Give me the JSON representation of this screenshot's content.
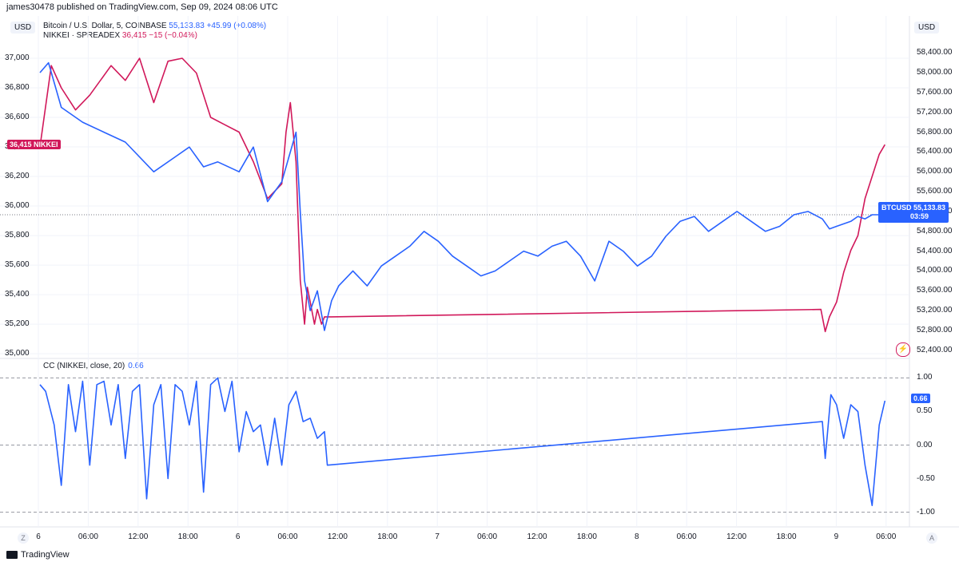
{
  "header": {
    "publisher": "james30478 published on TradingView.com, Sep 09, 2024 08:06 UTC",
    "currency_left": "USD",
    "currency_right": "USD"
  },
  "legend": {
    "btc": {
      "name": "Bitcoin / U.S. Dollar, 5, COINBASE",
      "value": "55,133.83",
      "change": "+45.99 (+0.08%)"
    },
    "nikkei": {
      "name": "NIKKEI · SPREADEX",
      "value": "36,415",
      "change": "−15 (−0.04%)"
    }
  },
  "badges": {
    "nikkei_value": "36,415",
    "nikkei_label": "NIKKEI",
    "btc_label": "BTCUSD",
    "btc_value": "55,133.83",
    "btc_countdown": "03:59",
    "cc_value": "0.66"
  },
  "cc_legend": {
    "label": "CC (NIKKEI, close, 20)",
    "value": "0.66"
  },
  "footer": {
    "brand": "TradingView",
    "z_button": "Z",
    "a_button": "A"
  },
  "colors": {
    "btc": "#2962ff",
    "nikkei": "#d1185a",
    "grid": "#f0f3fa",
    "dashed": "#9598a1"
  },
  "chart_data": [
    {
      "type": "line",
      "title": "Bitcoin / U.S. Dollar, 5, COINBASE vs NIKKEI · SPREADEX",
      "x_ticks": [
        "6",
        "06:00",
        "12:00",
        "18:00",
        "6",
        "06:00",
        "12:00",
        "18:00",
        "7",
        "06:00",
        "12:00",
        "18:00",
        "8",
        "06:00",
        "12:00",
        "18:00",
        "9",
        "06:00"
      ],
      "y_left_ticks": [
        "37,000",
        "36,800",
        "36,600",
        "36,400",
        "36,200",
        "36,000",
        "35,800",
        "35,600",
        "35,400",
        "35,200",
        "35,000"
      ],
      "y_right_ticks": [
        "58,400.00",
        "58,000.00",
        "57,600.00",
        "57,200.00",
        "56,800.00",
        "56,400.00",
        "56,000.00",
        "55,600.00",
        "55,200.00",
        "54,800.00",
        "54,400.00",
        "54,000.00",
        "53,600.00",
        "53,200.00",
        "52,800.00",
        "52,400.00"
      ],
      "ylim_left": [
        34990,
        37070
      ],
      "ylim_right": [
        52300,
        58500
      ],
      "series": [
        {
          "name": "NIKKEI · SPREADEX",
          "axis": "left",
          "x": [
            0,
            0.8,
            1.5,
            2.5,
            3.5,
            5,
            6,
            7,
            8,
            9,
            10,
            11,
            12,
            13,
            14,
            15,
            16,
            17,
            17.3,
            17.6,
            18,
            18.3,
            18.6,
            18.8,
            19,
            19.3,
            19.5,
            19.8,
            20,
            20.5,
            54.9,
            55.2,
            55.5,
            56,
            56.5,
            57,
            57.5,
            58,
            58.5,
            59,
            59.4
          ],
          "values": [
            36400,
            36950,
            36800,
            36650,
            36750,
            36950,
            36850,
            37000,
            36700,
            36980,
            37000,
            36900,
            36600,
            36550,
            36500,
            36300,
            36050,
            36150,
            36500,
            36700,
            36300,
            35500,
            35200,
            35450,
            35350,
            35200,
            35300,
            35200,
            35250,
            35250,
            35300,
            35150,
            35250,
            35350,
            35550,
            35700,
            35800,
            36050,
            36200,
            36350,
            36415
          ]
        },
        {
          "name": "Bitcoin / U.S. Dollar",
          "axis": "right",
          "x": [
            0,
            0.6,
            1.5,
            3,
            4.5,
            6,
            8,
            9.5,
            10.5,
            11.5,
            12.5,
            14,
            15,
            16,
            17,
            18,
            18.3,
            18.6,
            19,
            19.5,
            20,
            20.5,
            21,
            22,
            23,
            24,
            25,
            26,
            27,
            28,
            29,
            30,
            31,
            32,
            33,
            34,
            35,
            36,
            37,
            38,
            39,
            40,
            41,
            42,
            43,
            44,
            45,
            46,
            47,
            48,
            49,
            50,
            51,
            52,
            53,
            54,
            55,
            55.5,
            56,
            56.5,
            57,
            57.5,
            58,
            58.5,
            59,
            59.4
          ],
          "values": [
            58000,
            58200,
            57300,
            57000,
            56800,
            56600,
            56000,
            56300,
            56500,
            56100,
            56200,
            56000,
            56500,
            55400,
            55800,
            56800,
            55200,
            53800,
            53200,
            53600,
            52800,
            53400,
            53700,
            54000,
            53700,
            54100,
            54300,
            54500,
            54800,
            54600,
            54300,
            54100,
            53900,
            54000,
            54200,
            54400,
            54300,
            54500,
            54600,
            54300,
            53800,
            54600,
            54400,
            54100,
            54300,
            54700,
            55000,
            55100,
            54800,
            55000,
            55200,
            55000,
            54800,
            54900,
            55133.83,
            55200,
            55050,
            54850,
            54900,
            54950,
            55000,
            55100,
            55050,
            55133.83,
            55133.83,
            55133.83
          ]
        }
      ]
    },
    {
      "type": "line",
      "title": "CC (NIKKEI, close, 20)",
      "y_ticks": [
        "1.00",
        "0.50",
        "0.00",
        "-0.50",
        "-1.00"
      ],
      "ylim": [
        -1.1,
        1.1
      ],
      "series": [
        {
          "name": "CC (NIKKEI, close, 20)",
          "x": [
            0,
            0.4,
            1,
            1.5,
            2,
            2.5,
            3,
            3.5,
            4,
            4.5,
            5,
            5.5,
            6,
            6.5,
            7,
            7.5,
            8,
            8.5,
            9,
            9.5,
            10,
            10.5,
            11,
            11.5,
            12,
            12.5,
            13,
            13.5,
            14,
            14.5,
            15,
            15.5,
            16,
            16.5,
            17,
            17.5,
            18,
            18.5,
            19,
            19.5,
            20,
            20.2,
            55,
            55.2,
            55.6,
            56,
            56.5,
            57,
            57.5,
            58,
            58.5,
            59,
            59.4
          ],
          "values": [
            0.9,
            0.8,
            0.3,
            -0.6,
            0.9,
            0.2,
            0.95,
            -0.3,
            0.9,
            0.95,
            0.3,
            0.9,
            -0.2,
            0.8,
            0.9,
            -0.8,
            0.6,
            0.9,
            -0.5,
            0.9,
            0.8,
            0.3,
            0.95,
            -0.7,
            0.9,
            1.0,
            0.5,
            0.95,
            -0.1,
            0.5,
            0.2,
            0.3,
            -0.3,
            0.4,
            -0.3,
            0.6,
            0.8,
            0.35,
            0.4,
            0.1,
            0.2,
            -0.3,
            0.35,
            -0.2,
            0.75,
            0.6,
            0.1,
            0.6,
            0.5,
            -0.3,
            -0.9,
            0.3,
            0.66
          ]
        }
      ]
    }
  ]
}
